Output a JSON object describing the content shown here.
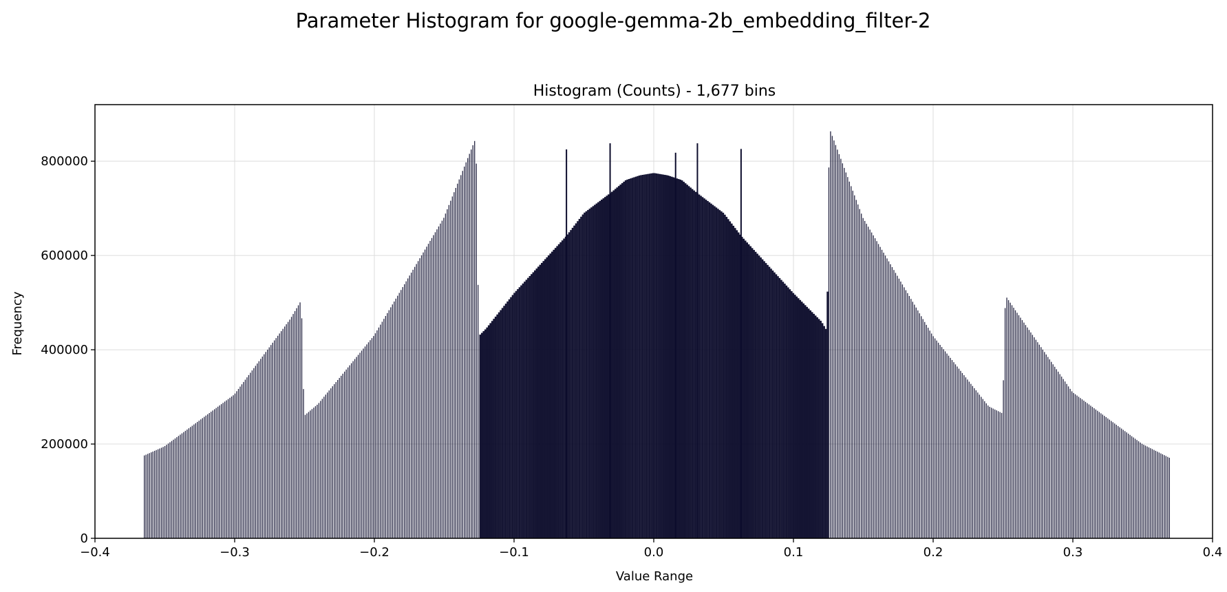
{
  "chart_data": {
    "type": "bar",
    "suptitle": "Parameter Histogram for google-gemma-2b_embedding_filter-2",
    "title": "Histogram (Counts) - 1,677 bins",
    "xlabel": "Value Range",
    "ylabel": "Frequency",
    "xlim": [
      -0.4,
      0.4
    ],
    "ylim": [
      0,
      920000
    ],
    "xticks": [
      -0.4,
      -0.3,
      -0.2,
      -0.1,
      0.0,
      0.1,
      0.2,
      0.3,
      0.4
    ],
    "xtick_labels": [
      "−0.4",
      "−0.3",
      "−0.2",
      "−0.1",
      "0.0",
      "0.1",
      "0.2",
      "0.3",
      "0.4"
    ],
    "yticks": [
      0,
      200000,
      400000,
      600000,
      800000
    ],
    "ytick_labels": [
      "0",
      "200000",
      "400000",
      "600000",
      "800000"
    ],
    "grid": true,
    "bar_color": "#0b0b2b",
    "bins": 1677,
    "x": [
      -0.365,
      -0.35,
      -0.3,
      -0.26,
      -0.252,
      -0.25,
      -0.24,
      -0.2,
      -0.15,
      -0.127,
      -0.125,
      -0.12,
      -0.1,
      -0.063,
      -0.05,
      -0.03,
      -0.02,
      -0.01,
      0.0,
      0.01,
      0.02,
      0.03,
      0.05,
      0.063,
      0.1,
      0.12,
      0.124,
      0.126,
      0.15,
      0.2,
      0.24,
      0.25,
      0.252,
      0.26,
      0.3,
      0.35,
      0.37
    ],
    "values": [
      175000,
      195000,
      305000,
      465000,
      505000,
      260000,
      285000,
      430000,
      680000,
      850000,
      430000,
      445000,
      520000,
      640000,
      690000,
      735000,
      760000,
      770000,
      775000,
      770000,
      760000,
      735000,
      690000,
      640000,
      520000,
      460000,
      440000,
      870000,
      680000,
      430000,
      280000,
      265000,
      515000,
      480000,
      310000,
      200000,
      170000
    ],
    "spikes": [
      {
        "x": -0.0625,
        "y": 825000
      },
      {
        "x": -0.03125,
        "y": 838000
      },
      {
        "x": 0.015625,
        "y": 818000
      },
      {
        "x": 0.03125,
        "y": 838000
      },
      {
        "x": 0.0625,
        "y": 826000
      }
    ]
  }
}
